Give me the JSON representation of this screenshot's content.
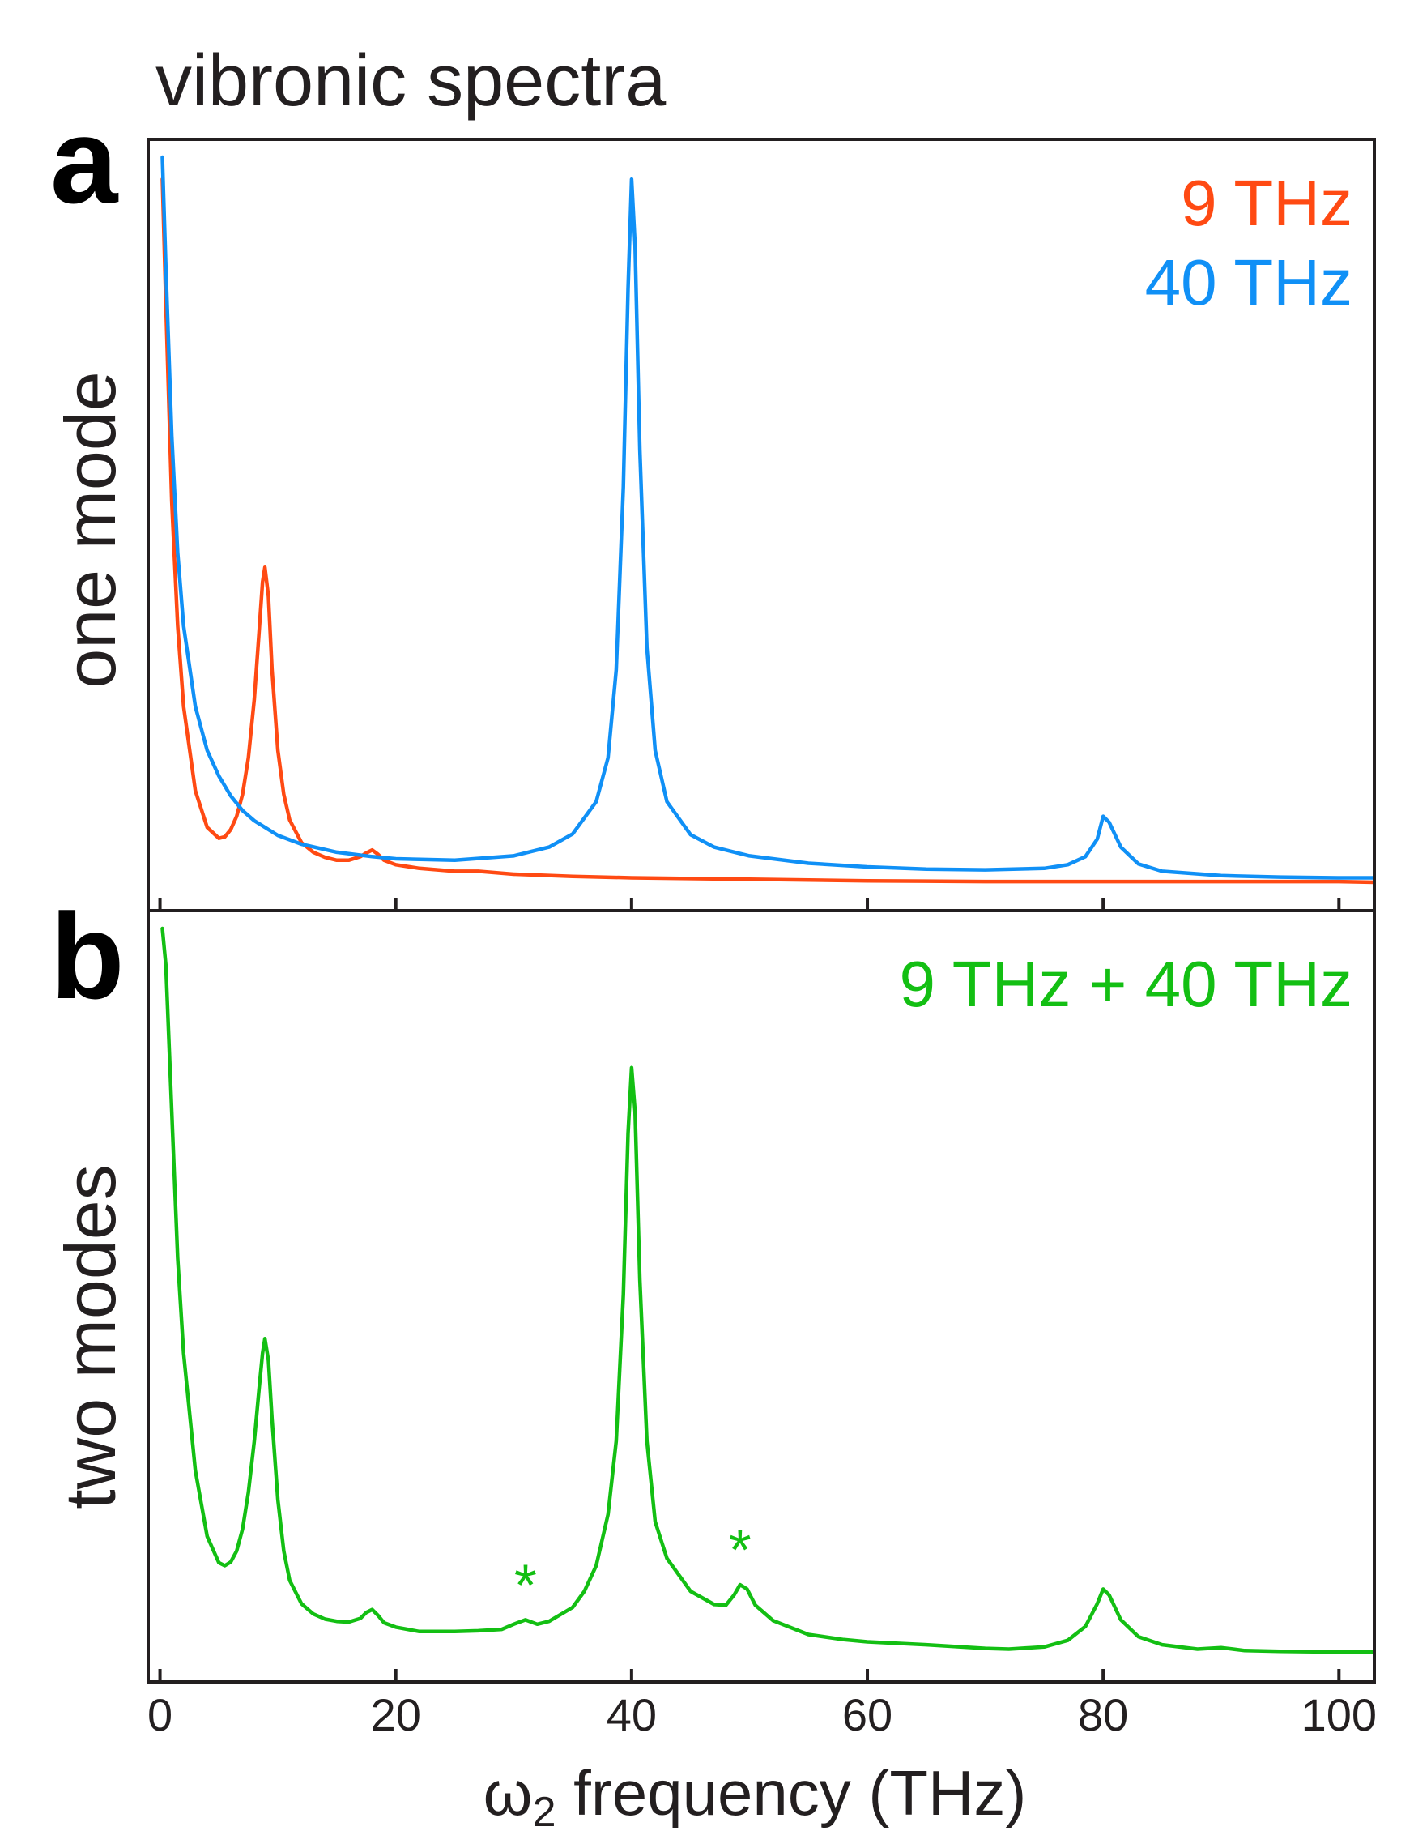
{
  "figure": {
    "title": "vibronic spectra",
    "xlabel_main": "ω",
    "xlabel_sub": "2",
    "xlabel_rest": " frequency (THz)"
  },
  "colors": {
    "red": "#ff4a13",
    "blue": "#1090f6",
    "green": "#13bf13",
    "axis": "#231f20"
  },
  "chart_data": [
    {
      "type": "line",
      "panel_letter": "a",
      "ylabel": "one mode",
      "xlim": [
        -1,
        103
      ],
      "ylim": [
        0,
        1
      ],
      "xticks": [
        0,
        20,
        40,
        60,
        80,
        100
      ],
      "xtick_labels": [
        "0",
        "20",
        "40",
        "60",
        "80",
        "100"
      ],
      "series": [
        {
          "name": "9 THz",
          "color": "#ff4a13",
          "x": [
            0.2,
            0.5,
            1,
            1.5,
            2,
            3,
            4,
            5,
            5.5,
            6,
            6.5,
            7,
            7.5,
            8,
            8.4,
            8.7,
            8.9,
            9.2,
            9.5,
            10,
            10.5,
            11,
            12,
            13,
            14,
            15,
            16,
            17,
            17.5,
            18,
            18.5,
            19,
            20,
            22,
            25,
            27,
            30,
            35,
            40,
            50,
            60,
            70,
            80,
            90,
            100,
            103
          ],
          "y": [
            0.97,
            0.8,
            0.53,
            0.36,
            0.25,
            0.135,
            0.085,
            0.07,
            0.072,
            0.082,
            0.1,
            0.13,
            0.18,
            0.26,
            0.35,
            0.42,
            0.44,
            0.4,
            0.3,
            0.19,
            0.13,
            0.095,
            0.064,
            0.051,
            0.044,
            0.04,
            0.04,
            0.045,
            0.05,
            0.054,
            0.048,
            0.04,
            0.034,
            0.029,
            0.025,
            0.025,
            0.021,
            0.018,
            0.016,
            0.014,
            0.012,
            0.011,
            0.011,
            0.011,
            0.011,
            0.01
          ]
        },
        {
          "name": "40 THz",
          "color": "#1090f6",
          "x": [
            0.2,
            0.5,
            1,
            1.5,
            2,
            3,
            4,
            5,
            6,
            7,
            8,
            10,
            12,
            15,
            18,
            20,
            25,
            30,
            33,
            35,
            37,
            38,
            38.7,
            39.3,
            39.7,
            40,
            40.3,
            40.7,
            41.3,
            42,
            43,
            45,
            47,
            50,
            55,
            60,
            65,
            70,
            75,
            77,
            78.5,
            79.5,
            80,
            80.5,
            81.5,
            83,
            85,
            90,
            95,
            100,
            103
          ],
          "y": [
            1.0,
            0.85,
            0.62,
            0.46,
            0.36,
            0.25,
            0.19,
            0.155,
            0.128,
            0.108,
            0.094,
            0.074,
            0.062,
            0.051,
            0.045,
            0.042,
            0.04,
            0.046,
            0.058,
            0.076,
            0.12,
            0.18,
            0.3,
            0.55,
            0.82,
            0.97,
            0.88,
            0.6,
            0.33,
            0.19,
            0.12,
            0.075,
            0.058,
            0.046,
            0.036,
            0.031,
            0.028,
            0.027,
            0.029,
            0.034,
            0.045,
            0.069,
            0.1,
            0.092,
            0.058,
            0.035,
            0.025,
            0.019,
            0.017,
            0.016,
            0.016
          ]
        }
      ]
    },
    {
      "type": "line",
      "panel_letter": "b",
      "ylabel": "two modes",
      "xlim": [
        -1,
        103
      ],
      "ylim": [
        0,
        1
      ],
      "xticks": [
        0,
        20,
        40,
        60,
        80,
        100
      ],
      "xtick_labels": [
        "0",
        "20",
        "40",
        "60",
        "80",
        "100"
      ],
      "series": [
        {
          "name": "9 THz + 40 THz",
          "color": "#13bf13",
          "x": [
            0.2,
            0.5,
            1,
            1.5,
            2,
            3,
            4,
            5,
            5.5,
            6,
            6.5,
            7,
            7.5,
            8,
            8.4,
            8.7,
            8.9,
            9.2,
            9.5,
            10,
            10.5,
            11,
            12,
            13,
            14,
            15,
            16,
            17,
            17.5,
            18,
            18.5,
            19,
            20,
            22,
            25,
            27,
            29,
            30,
            31,
            32,
            33,
            35,
            36,
            37,
            38,
            38.7,
            39.3,
            39.7,
            40,
            40.3,
            40.7,
            41.3,
            42,
            43,
            45,
            47,
            48,
            48.7,
            49.2,
            49.8,
            50.5,
            52,
            55,
            58,
            60,
            65,
            70,
            72,
            75,
            77,
            78.5,
            79.5,
            80,
            80.5,
            81.5,
            83,
            85,
            88,
            90,
            92,
            95,
            100,
            103
          ],
          "y": [
            1.0,
            0.95,
            0.75,
            0.55,
            0.42,
            0.26,
            0.17,
            0.134,
            0.13,
            0.135,
            0.15,
            0.18,
            0.23,
            0.3,
            0.37,
            0.42,
            0.44,
            0.41,
            0.33,
            0.22,
            0.15,
            0.11,
            0.078,
            0.064,
            0.057,
            0.054,
            0.053,
            0.058,
            0.066,
            0.07,
            0.062,
            0.052,
            0.046,
            0.04,
            0.04,
            0.041,
            0.043,
            0.05,
            0.056,
            0.05,
            0.054,
            0.073,
            0.095,
            0.13,
            0.2,
            0.3,
            0.5,
            0.72,
            0.81,
            0.75,
            0.52,
            0.3,
            0.19,
            0.14,
            0.095,
            0.077,
            0.076,
            0.09,
            0.104,
            0.098,
            0.076,
            0.055,
            0.036,
            0.029,
            0.026,
            0.022,
            0.017,
            0.016,
            0.019,
            0.028,
            0.047,
            0.078,
            0.098,
            0.09,
            0.056,
            0.033,
            0.022,
            0.016,
            0.018,
            0.014,
            0.013,
            0.012,
            0.012
          ]
        }
      ],
      "annotations": [
        {
          "text": "*",
          "x": 31,
          "y": 0.056,
          "color": "#13bf13"
        },
        {
          "text": "*",
          "x": 49.2,
          "y": 0.104,
          "color": "#13bf13"
        }
      ]
    }
  ]
}
